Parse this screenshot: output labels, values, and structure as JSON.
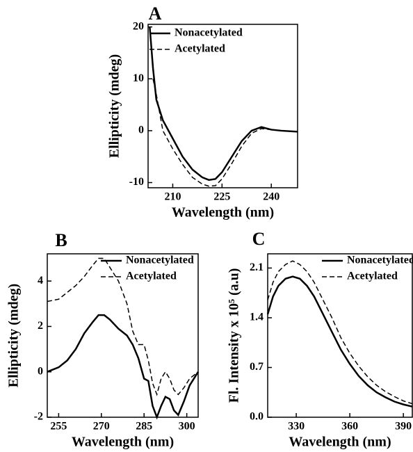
{
  "chart_data": [
    {
      "type": "line",
      "title": "A",
      "x_label": "Wavelength (nm)",
      "y_label": "Ellipticity (mdeg)",
      "x": [
        203,
        204,
        205,
        207,
        210,
        213,
        216,
        219,
        221,
        223,
        225,
        228,
        231,
        234,
        237,
        240,
        243,
        248
      ],
      "series": [
        {
          "name": "Nonacetylated",
          "color": "#000000",
          "dash": false,
          "values": [
            20,
            12,
            6,
            2,
            -1.5,
            -5,
            -7.5,
            -9,
            -9.5,
            -9.3,
            -8,
            -5,
            -2,
            0,
            0.7,
            0.2,
            0,
            -0.2
          ]
        },
        {
          "name": "Acetylated",
          "color": "#000000",
          "dash": true,
          "values": [
            null,
            10,
            7,
            0,
            -3.5,
            -6.5,
            -9,
            -10.3,
            -10.7,
            -10.6,
            -9.3,
            -6.3,
            -3,
            -0.5,
            0.4,
            0.2,
            0,
            -0.2
          ]
        }
      ],
      "xlim": [
        202.5,
        248
      ],
      "xticks": [
        210,
        225,
        240
      ],
      "ylim": [
        -11,
        20.5
      ],
      "yticks": [
        -10,
        0,
        10,
        20
      ]
    },
    {
      "type": "line",
      "title": "B",
      "x_label": "Wavelength (nm)",
      "y_label": "Ellipticity (mdeg)",
      "x": [
        251,
        255,
        258,
        261,
        264,
        267,
        269,
        271,
        273,
        276,
        279,
        281,
        283,
        285,
        286.5,
        288,
        289.5,
        291,
        292.5,
        294,
        295.5,
        297,
        299,
        301,
        304
      ],
      "series": [
        {
          "name": "Nonacetylated",
          "color": "#000000",
          "dash": false,
          "values": [
            0,
            0.2,
            0.5,
            1,
            1.7,
            2.2,
            2.5,
            2.5,
            2.3,
            1.9,
            1.6,
            1.2,
            0.6,
            -0.3,
            -0.4,
            -1.5,
            -2.0,
            -1.5,
            -1.1,
            -1.2,
            -1.7,
            -1.9,
            -1.3,
            -0.6,
            0
          ]
        },
        {
          "name": "Acetylated",
          "color": "#000000",
          "dash": true,
          "values": [
            3.1,
            3.2,
            3.5,
            3.8,
            4.2,
            4.7,
            5.0,
            5.0,
            4.6,
            4.0,
            3.0,
            1.8,
            1.2,
            1.2,
            0.5,
            -0.5,
            -1.0,
            -0.3,
            0.0,
            -0.3,
            -0.8,
            -1.0,
            -0.7,
            -0.3,
            0
          ]
        }
      ],
      "xlim": [
        251,
        304
      ],
      "xticks": [
        255,
        270,
        285,
        300
      ],
      "ylim": [
        -2,
        5.2
      ],
      "yticks": [
        -2,
        0,
        2,
        4
      ]
    },
    {
      "type": "line",
      "title": "C",
      "x_label": "Wavelength (nm)",
      "y_label": "Fl. Intensity x 10⁵ (a.u)",
      "x": [
        314,
        317,
        320,
        324,
        328,
        332,
        336,
        340,
        345,
        350,
        355,
        360,
        365,
        370,
        375,
        380,
        385,
        390,
        395
      ],
      "series": [
        {
          "name": "Nonacetylated",
          "color": "#000000",
          "dash": false,
          "values": [
            1.45,
            1.7,
            1.85,
            1.95,
            1.98,
            1.95,
            1.85,
            1.7,
            1.45,
            1.2,
            0.95,
            0.75,
            0.58,
            0.45,
            0.35,
            0.28,
            0.22,
            0.18,
            0.15
          ]
        },
        {
          "name": "Acetylated",
          "color": "#000000",
          "dash": true,
          "values": [
            1.65,
            1.9,
            2.05,
            2.15,
            2.2,
            2.15,
            2.05,
            1.9,
            1.65,
            1.4,
            1.12,
            0.9,
            0.72,
            0.57,
            0.45,
            0.36,
            0.29,
            0.23,
            0.19
          ]
        }
      ],
      "xlim": [
        314,
        395
      ],
      "xticks": [
        330,
        360,
        390
      ],
      "ylim": [
        0,
        2.3
      ],
      "yticks": [
        {
          "value": 0,
          "label": "0.0"
        },
        0.7,
        1.4,
        2.1
      ]
    }
  ]
}
